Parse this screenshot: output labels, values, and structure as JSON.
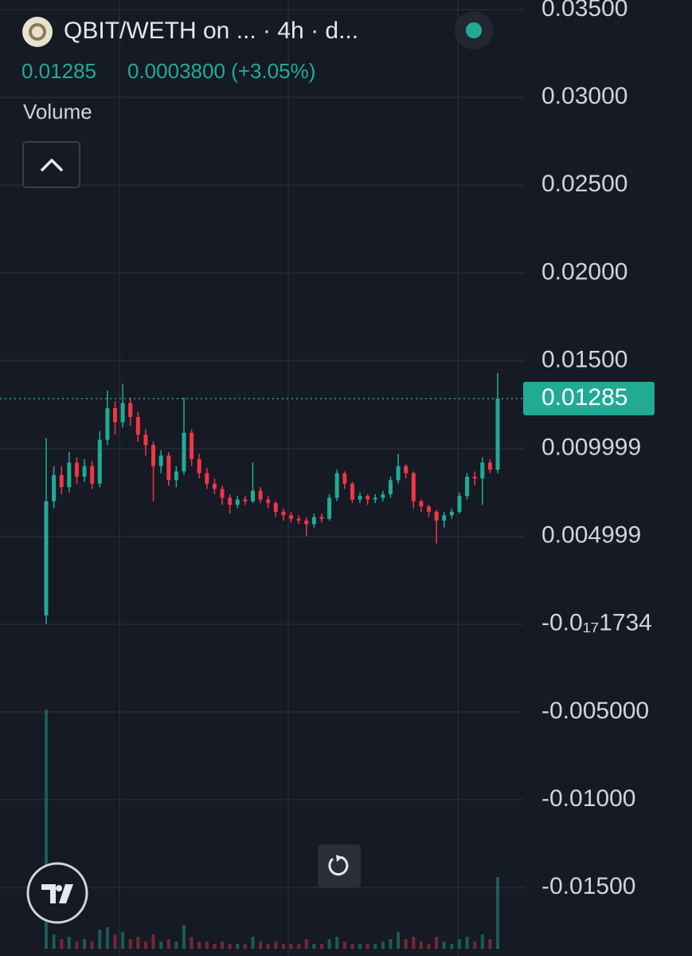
{
  "chart_data": {
    "type": "candlestick",
    "title": "QBIT/WETH on ... · 4h · d...",
    "last_price": 0.01285,
    "last_price_label": "0.01285",
    "change_label": "0.0003800 (+3.05%)",
    "volume_label": "Volume",
    "up_color": "#22ab94",
    "down_color": "#f23645",
    "grid": true,
    "ylim": [
      -0.0189,
      0.03555
    ],
    "yticks": [
      {
        "value": 0.035,
        "label": "0.03500"
      },
      {
        "value": 0.03,
        "label": "0.03000"
      },
      {
        "value": 0.025,
        "label": "0.02500"
      },
      {
        "value": 0.02,
        "label": "0.02000"
      },
      {
        "value": 0.015,
        "label": "0.01500"
      },
      0.009999,
      0.004999,
      {
        "value": -1.734e-18,
        "label": "-0.0₁₇1734"
      },
      {
        "value": -0.005,
        "label": "-0.005000"
      },
      {
        "value": -0.01,
        "label": "-0.01000"
      },
      {
        "value": -0.015,
        "label": "-0.01500"
      }
    ],
    "open": [
      0.0005,
      0.007,
      0.0085,
      0.0078,
      0.0092,
      0.0084,
      0.009,
      0.008,
      0.0105,
      0.0123,
      0.0115,
      0.0126,
      0.0118,
      0.0108,
      0.0102,
      0.009,
      0.0096,
      0.0082,
      0.0087,
      0.0109,
      0.0094,
      0.0086,
      0.008,
      0.0077,
      0.0072,
      0.0068,
      0.0071,
      0.007,
      0.0076,
      0.0071,
      0.0069,
      0.0064,
      0.0062,
      0.006,
      0.0059,
      0.0057,
      0.0061,
      0.006,
      0.0072,
      0.0086,
      0.008,
      0.0071,
      0.0073,
      0.0071,
      0.0072,
      0.0074,
      0.0082,
      0.009,
      0.0086,
      0.007,
      0.0067,
      0.0064,
      0.0059,
      0.0062,
      0.0064,
      0.0073,
      0.0084,
      0.0083,
      0.0092,
      0.0088
    ],
    "high": [
      0.0106,
      0.009,
      0.009,
      0.0098,
      0.0095,
      0.0094,
      0.0093,
      0.011,
      0.0133,
      0.0127,
      0.0137,
      0.0129,
      0.0121,
      0.0111,
      0.0104,
      0.0099,
      0.0098,
      0.009,
      0.0129,
      0.0111,
      0.0097,
      0.0089,
      0.0083,
      0.0079,
      0.0074,
      0.0073,
      0.0073,
      0.0092,
      0.0078,
      0.0073,
      0.007,
      0.0066,
      0.0064,
      0.0062,
      0.0061,
      0.0063,
      0.0063,
      0.0074,
      0.0088,
      0.0087,
      0.0081,
      0.0075,
      0.0074,
      0.0074,
      0.0076,
      0.0084,
      0.0097,
      0.0091,
      0.0087,
      0.0071,
      0.0068,
      0.0065,
      0.0064,
      0.0066,
      0.0075,
      0.0086,
      0.0087,
      0.0095,
      0.0094,
      0.0143
    ],
    "low": [
      0.0,
      0.0066,
      0.0074,
      0.0075,
      0.008,
      0.0081,
      0.0077,
      0.0078,
      0.0102,
      0.0108,
      0.0112,
      0.0113,
      0.0104,
      0.0096,
      0.007,
      0.0086,
      0.0079,
      0.0078,
      0.0085,
      0.009,
      0.0083,
      0.0077,
      0.0074,
      0.0068,
      0.0063,
      0.0066,
      0.0068,
      0.0069,
      0.0069,
      0.0066,
      0.0061,
      0.0059,
      0.0058,
      0.0057,
      0.005,
      0.0055,
      0.0058,
      0.0059,
      0.007,
      0.0077,
      0.0069,
      0.0069,
      0.0068,
      0.0069,
      0.007,
      0.0072,
      0.008,
      0.0083,
      0.0066,
      0.0064,
      0.0061,
      0.0046,
      0.0055,
      0.006,
      0.0063,
      0.0071,
      0.0079,
      0.0068,
      0.0086,
      0.0086
    ],
    "close": [
      0.007,
      0.0085,
      0.0078,
      0.0092,
      0.0084,
      0.009,
      0.008,
      0.0105,
      0.0123,
      0.0115,
      0.0126,
      0.0118,
      0.0108,
      0.0102,
      0.009,
      0.0096,
      0.0082,
      0.0087,
      0.0109,
      0.0094,
      0.0086,
      0.008,
      0.0077,
      0.0072,
      0.0068,
      0.0071,
      0.007,
      0.0076,
      0.0071,
      0.0069,
      0.0064,
      0.0062,
      0.006,
      0.0059,
      0.0057,
      0.0061,
      0.006,
      0.0072,
      0.0086,
      0.008,
      0.0071,
      0.0073,
      0.0071,
      0.0072,
      0.0074,
      0.0082,
      0.009,
      0.0086,
      0.007,
      0.0067,
      0.0064,
      0.0059,
      0.0062,
      0.0064,
      0.0073,
      0.0084,
      0.0083,
      0.0092,
      0.0088,
      0.01285
    ],
    "volume": [
      100,
      6,
      4,
      5,
      3,
      4,
      3,
      8,
      9,
      6,
      7,
      4,
      5,
      3,
      6,
      3,
      4,
      3,
      10,
      5,
      3,
      3,
      2,
      3,
      2,
      2,
      2,
      5,
      3,
      2,
      3,
      2,
      2,
      2,
      4,
      2,
      2,
      4,
      5,
      3,
      2,
      2,
      2,
      2,
      3,
      4,
      7,
      4,
      5,
      3,
      2,
      5,
      3,
      2,
      4,
      5,
      3,
      6,
      4,
      30
    ]
  }
}
